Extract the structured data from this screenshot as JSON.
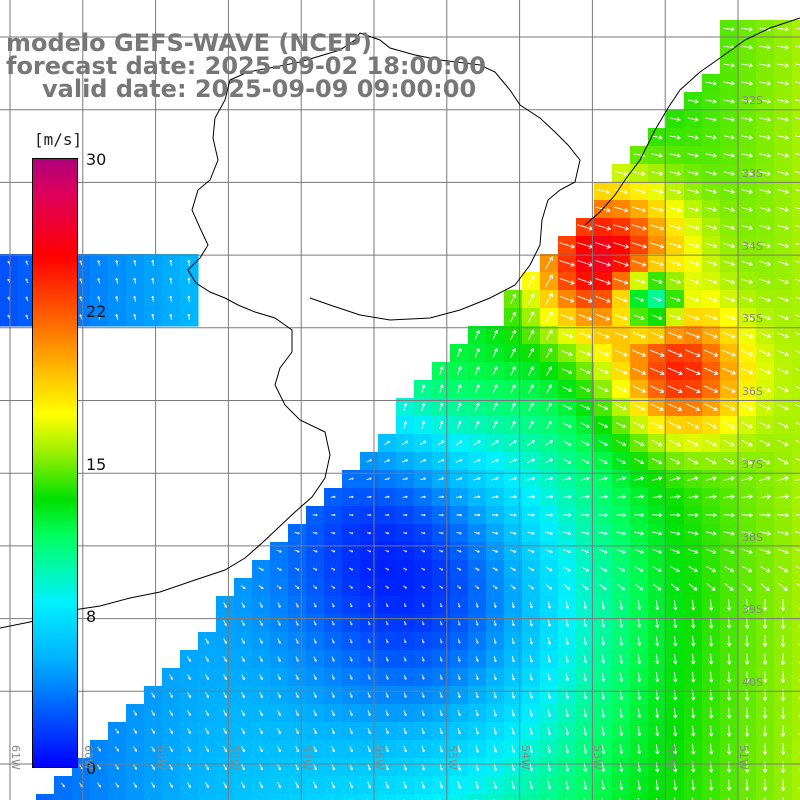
{
  "title": {
    "line1": "modelo GEFS-WAVE (NCEP)",
    "line2": "forecast date: 2025-09-02 18:00:00",
    "line3": "valid date: 2025-09-09 09:00:00"
  },
  "colorbar": {
    "unit": "[m/s]",
    "ticks": [
      "30",
      "22",
      "15",
      "8",
      "0"
    ],
    "tick_values": [
      30,
      22,
      15,
      8,
      0
    ],
    "range": [
      0,
      30
    ],
    "colors": [
      "#0000ff",
      "#00b4ff",
      "#00f0ff",
      "#00ff60",
      "#00e000",
      "#a0f000",
      "#ffff00",
      "#ffc800",
      "#ff6000",
      "#ff0000",
      "#e0005a",
      "#b0007a"
    ]
  },
  "map": {
    "lat_labels": [
      "32S",
      "33S",
      "34S",
      "35S",
      "36S",
      "37S",
      "38S",
      "39S",
      "40S"
    ],
    "lon_labels": [
      "61W",
      "60W",
      "59W",
      "58W",
      "57W",
      "56W",
      "55W",
      "54W",
      "53W",
      "52W",
      "51W"
    ],
    "lat_values": [
      -32,
      -33,
      -34,
      -35,
      -36,
      -37,
      -38,
      -39,
      -40
    ],
    "lon_values": [
      -61,
      -60,
      -59,
      -58,
      -57,
      -56,
      -55,
      -54,
      -53,
      -52,
      -51
    ],
    "land_color": "#ffffff",
    "grid_color": "#7a7a7a",
    "coast_color": "#000000",
    "arrow_color": "#ffffff"
  }
}
